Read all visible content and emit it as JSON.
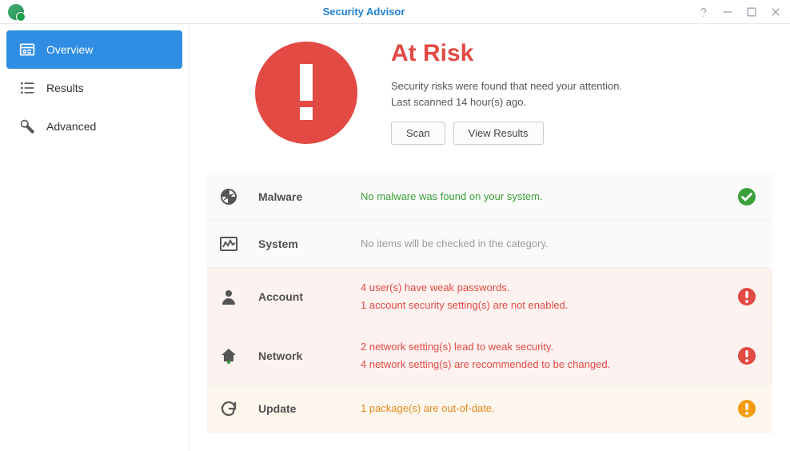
{
  "window": {
    "title": "Security Advisor"
  },
  "sidebar": {
    "items": [
      {
        "label": "Overview"
      },
      {
        "label": "Results"
      },
      {
        "label": "Advanced"
      }
    ]
  },
  "hero": {
    "title": "At Risk",
    "line1": "Security risks were found that need your attention.",
    "line2": "Last scanned 14 hour(s) ago.",
    "scan_label": "Scan",
    "view_results_label": "View Results",
    "badge_color": "#e24a43",
    "title_color": "#e24a43"
  },
  "categories": [
    {
      "key": "malware",
      "name": "Malware",
      "status": "ok",
      "messages": [
        {
          "text": "No malware was found on your system.",
          "tone": "ok"
        }
      ]
    },
    {
      "key": "system",
      "name": "System",
      "status": "none",
      "messages": [
        {
          "text": "No items will be checked in the category.",
          "tone": "muted"
        }
      ]
    },
    {
      "key": "account",
      "name": "Account",
      "status": "risk",
      "messages": [
        {
          "text": "4 user(s) have weak passwords.",
          "tone": "risk"
        },
        {
          "text": "1 account security setting(s) are not enabled.",
          "tone": "risk"
        }
      ]
    },
    {
      "key": "network",
      "name": "Network",
      "status": "risk",
      "messages": [
        {
          "text": "2 network setting(s) lead to weak security.",
          "tone": "risk"
        },
        {
          "text": "4 network setting(s) are recommended to be changed.",
          "tone": "risk"
        }
      ]
    },
    {
      "key": "update",
      "name": "Update",
      "status": "warn",
      "messages": [
        {
          "text": "1 package(s) are out-of-date.",
          "tone": "warn"
        }
      ]
    }
  ],
  "colors": {
    "accent": "#2f8de4",
    "risk": "#e24a43",
    "warn": "#f39c12",
    "ok": "#3aa03a",
    "muted": "#9a9a9a",
    "row_risk_bg": "#fdf2f0",
    "row_warn_bg": "#fdf6ed",
    "row_default_bg": "#fafafa"
  }
}
